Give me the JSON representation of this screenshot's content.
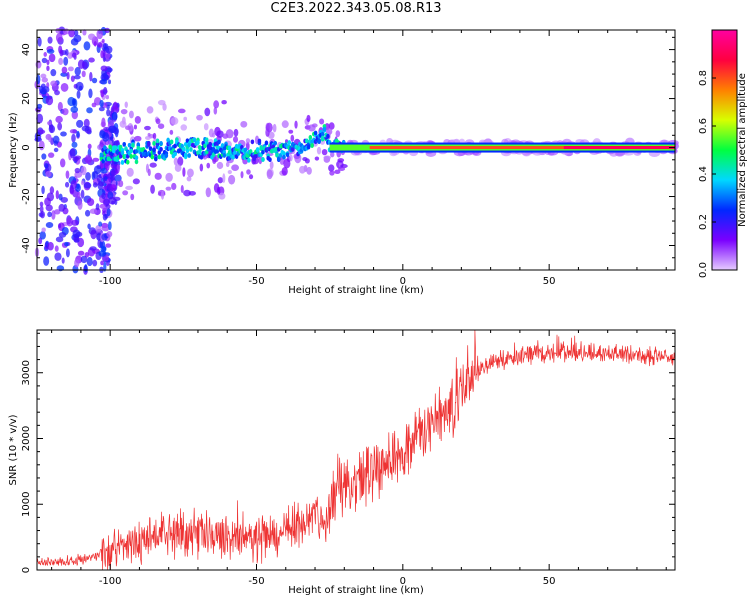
{
  "figure": {
    "title": "C2E3.2022.343.05.08.R13"
  },
  "chart_data": [
    {
      "type": "heatmap",
      "xlabel": "Height of straight line (km)",
      "ylabel": "Frequency (Hz)",
      "xlim": [
        -125,
        93
      ],
      "ylim": [
        -50,
        48
      ],
      "x_ticks": [
        -100,
        -50,
        0,
        50
      ],
      "x_tick_labels": [
        "-100",
        "-50",
        "0",
        "50"
      ],
      "y_ticks": [
        -40,
        -20,
        0,
        20,
        40
      ],
      "y_tick_labels": [
        "-40",
        "-20",
        "0",
        "20",
        "40"
      ],
      "colorbar": {
        "label": "Normalized spectral amplitude",
        "range": [
          0.0,
          1.0
        ],
        "ticks": [
          0.0,
          0.2,
          0.4,
          0.6,
          0.8
        ],
        "tick_labels": [
          "0.0",
          "0.2",
          "0.4",
          "0.6",
          "0.8"
        ],
        "colors": [
          "#e6ccff",
          "#7a00ff",
          "#0028ff",
          "#00d8ff",
          "#00ff40",
          "#d8ff00",
          "#ff8000",
          "#ff0040",
          "#ff00a0"
        ]
      },
      "ridge": [
        {
          "x": -103,
          "y": -3
        },
        {
          "x": -95,
          "y": -2
        },
        {
          "x": -85,
          "y": -1
        },
        {
          "x": -75,
          "y": 0
        },
        {
          "x": -65,
          "y": -1
        },
        {
          "x": -55,
          "y": -2
        },
        {
          "x": -45,
          "y": -1
        },
        {
          "x": -35,
          "y": 0
        },
        {
          "x": -30,
          "y": 3
        },
        {
          "x": -27,
          "y": 6
        },
        {
          "x": -25,
          "y": 1
        },
        {
          "x": -20,
          "y": 0
        },
        {
          "x": 0,
          "y": 0
        },
        {
          "x": 30,
          "y": 0
        },
        {
          "x": 93,
          "y": 0
        }
      ],
      "grid": false
    },
    {
      "type": "line",
      "xlabel": "Height of straight line (km)",
      "ylabel": "SNR (10 * v/v)",
      "xlim": [
        -125,
        93
      ],
      "ylim": [
        0,
        3650
      ],
      "x_ticks": [
        -100,
        -50,
        0,
        50
      ],
      "x_tick_labels": [
        "-100",
        "-50",
        "0",
        "50"
      ],
      "y_ticks": [
        0,
        1000,
        2000,
        3000
      ],
      "y_tick_labels": [
        "0",
        "1000",
        "2000",
        "3000"
      ],
      "series": [
        {
          "color": "#ee3333",
          "x": [
            -125,
            -110,
            -103,
            -100,
            -95,
            -90,
            -85,
            -80,
            -75,
            -70,
            -65,
            -60,
            -55,
            -50,
            -45,
            -40,
            -35,
            -30,
            -25,
            -22,
            -20,
            -15,
            -10,
            -5,
            0,
            5,
            10,
            15,
            20,
            25,
            30,
            35,
            40,
            45,
            50,
            55,
            60,
            65,
            70,
            75,
            80,
            85,
            90,
            93
          ],
          "y": [
            100,
            150,
            250,
            300,
            350,
            450,
            500,
            550,
            550,
            550,
            500,
            500,
            500,
            500,
            500,
            550,
            700,
            900,
            750,
            1400,
            1100,
            1300,
            1600,
            1700,
            1800,
            2000,
            2200,
            2450,
            2750,
            3000,
            3150,
            3200,
            3250,
            3280,
            3300,
            3300,
            3300,
            3300,
            3300,
            3280,
            3280,
            3250,
            3250,
            3250
          ]
        }
      ],
      "grid": false
    }
  ]
}
